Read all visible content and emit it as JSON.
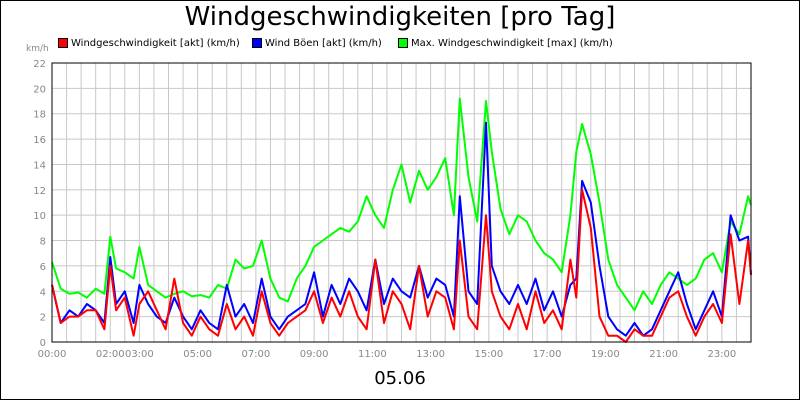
{
  "chart_data": {
    "type": "line",
    "title": "Windgeschwindigkeiten [pro Tag]",
    "ylabel": "km/h",
    "xlabel": "05.06",
    "ylim": [
      0,
      22
    ],
    "yticks": [
      0,
      2,
      4,
      6,
      8,
      10,
      12,
      14,
      16,
      18,
      20,
      22
    ],
    "xlim": [
      0,
      24
    ],
    "xtick_labels": [
      {
        "x": 0,
        "label": "00:00"
      },
      {
        "x": 2,
        "label": "02:00"
      },
      {
        "x": 3,
        "label": "03:00"
      },
      {
        "x": 5,
        "label": "05:00"
      },
      {
        "x": 7,
        "label": "07:00"
      },
      {
        "x": 9,
        "label": "09:00"
      },
      {
        "x": 11,
        "label": "11:00"
      },
      {
        "x": 13,
        "label": "13:00"
      },
      {
        "x": 15,
        "label": "15:00"
      },
      {
        "x": 17,
        "label": "17:00"
      },
      {
        "x": 19,
        "label": "19:00"
      },
      {
        "x": 21,
        "label": "21:00"
      },
      {
        "x": 23,
        "label": "23:00"
      }
    ],
    "grid": true,
    "legend_position": "top",
    "series": [
      {
        "name": "Max. Windgeschwindigkeit [max] (km/h)",
        "color": "#00ff00",
        "x": [
          0,
          0.3,
          0.6,
          0.9,
          1.2,
          1.5,
          1.8,
          2.0,
          2.2,
          2.5,
          2.8,
          3.0,
          3.3,
          3.6,
          3.9,
          4.2,
          4.5,
          4.8,
          5.1,
          5.4,
          5.7,
          6.0,
          6.3,
          6.6,
          6.9,
          7.2,
          7.5,
          7.8,
          8.1,
          8.4,
          8.7,
          9.0,
          9.3,
          9.6,
          9.9,
          10.2,
          10.5,
          10.8,
          11.1,
          11.4,
          11.7,
          12.0,
          12.3,
          12.6,
          12.9,
          13.2,
          13.5,
          13.8,
          14.0,
          14.3,
          14.6,
          14.9,
          15.1,
          15.4,
          15.7,
          16.0,
          16.3,
          16.6,
          16.9,
          17.2,
          17.5,
          17.8,
          18.0,
          18.2,
          18.5,
          18.8,
          19.1,
          19.4,
          19.7,
          20.0,
          20.3,
          20.6,
          20.9,
          21.2,
          21.5,
          21.8,
          22.1,
          22.4,
          22.7,
          23.0,
          23.3,
          23.6,
          23.9,
          24.0
        ],
        "values": [
          6.3,
          4.2,
          3.8,
          3.9,
          3.5,
          4.2,
          3.8,
          8.3,
          5.8,
          5.5,
          5.0,
          7.5,
          4.5,
          4.0,
          3.5,
          3.8,
          4.0,
          3.6,
          3.7,
          3.5,
          4.5,
          4.2,
          6.5,
          5.8,
          6.0,
          8.0,
          5.0,
          3.5,
          3.2,
          5.0,
          6.0,
          7.5,
          8.0,
          8.5,
          9.0,
          8.7,
          9.5,
          11.5,
          10.0,
          9.0,
          12.0,
          14.0,
          11.0,
          13.5,
          12.0,
          13.0,
          14.5,
          10.0,
          19.2,
          13.0,
          9.5,
          19.0,
          15.0,
          10.5,
          8.5,
          10.0,
          9.5,
          8.0,
          7.0,
          6.5,
          5.5,
          10.0,
          15.0,
          17.2,
          14.8,
          11.0,
          6.5,
          4.5,
          3.5,
          2.5,
          4.0,
          3.0,
          4.5,
          5.5,
          5.0,
          4.5,
          5.0,
          6.5,
          7.0,
          5.5,
          9.5,
          8.5,
          11.5,
          10.8
        ]
      },
      {
        "name": "Wind Böen [akt] (km/h)",
        "color": "#0000ff",
        "x": [
          0,
          0.3,
          0.6,
          0.9,
          1.2,
          1.5,
          1.8,
          2.0,
          2.2,
          2.5,
          2.8,
          3.0,
          3.3,
          3.6,
          3.9,
          4.2,
          4.5,
          4.8,
          5.1,
          5.4,
          5.7,
          6.0,
          6.3,
          6.6,
          6.9,
          7.2,
          7.5,
          7.8,
          8.1,
          8.4,
          8.7,
          9.0,
          9.3,
          9.6,
          9.9,
          10.2,
          10.5,
          10.8,
          11.1,
          11.4,
          11.7,
          12.0,
          12.3,
          12.6,
          12.9,
          13.2,
          13.5,
          13.8,
          14.0,
          14.3,
          14.6,
          14.9,
          15.1,
          15.4,
          15.7,
          16.0,
          16.3,
          16.6,
          16.9,
          17.2,
          17.5,
          17.8,
          18.0,
          18.2,
          18.5,
          18.8,
          19.1,
          19.4,
          19.7,
          20.0,
          20.3,
          20.6,
          20.9,
          21.2,
          21.5,
          21.8,
          22.1,
          22.4,
          22.7,
          23.0,
          23.3,
          23.6,
          23.9,
          24.0
        ],
        "values": [
          4.5,
          1.5,
          2.5,
          2.0,
          3.0,
          2.5,
          1.5,
          6.7,
          3.0,
          4.0,
          1.5,
          4.5,
          3.0,
          2.0,
          1.5,
          3.5,
          2.0,
          1.0,
          2.5,
          1.5,
          1.0,
          4.5,
          2.0,
          3.0,
          1.5,
          5.0,
          2.0,
          1.0,
          2.0,
          2.5,
          3.0,
          5.5,
          2.0,
          4.5,
          3.0,
          5.0,
          4.0,
          2.5,
          6.5,
          3.0,
          5.0,
          4.0,
          3.5,
          6.0,
          3.5,
          5.0,
          4.5,
          2.0,
          11.5,
          4.0,
          3.0,
          17.3,
          6.0,
          4.0,
          3.0,
          4.5,
          3.0,
          5.0,
          2.5,
          4.0,
          2.0,
          4.5,
          5.0,
          12.7,
          11.0,
          6.0,
          2.0,
          1.0,
          0.5,
          1.5,
          0.5,
          1.0,
          2.5,
          4.0,
          5.5,
          3.0,
          1.0,
          2.5,
          4.0,
          2.0,
          10.0,
          8.0,
          8.3,
          5.3
        ]
      },
      {
        "name": "Windgeschwindigkeit [akt] (km/h)",
        "color": "#ff0000",
        "x": [
          0,
          0.3,
          0.6,
          0.9,
          1.2,
          1.5,
          1.8,
          2.0,
          2.2,
          2.5,
          2.8,
          3.0,
          3.3,
          3.6,
          3.9,
          4.2,
          4.5,
          4.8,
          5.1,
          5.4,
          5.7,
          6.0,
          6.3,
          6.6,
          6.9,
          7.2,
          7.5,
          7.8,
          8.1,
          8.4,
          8.7,
          9.0,
          9.3,
          9.6,
          9.9,
          10.2,
          10.5,
          10.8,
          11.1,
          11.4,
          11.7,
          12.0,
          12.3,
          12.6,
          12.9,
          13.2,
          13.5,
          13.8,
          14.0,
          14.3,
          14.6,
          14.9,
          15.1,
          15.4,
          15.7,
          16.0,
          16.3,
          16.6,
          16.9,
          17.2,
          17.5,
          17.8,
          18.0,
          18.2,
          18.5,
          18.8,
          19.1,
          19.4,
          19.7,
          20.0,
          20.3,
          20.6,
          20.9,
          21.2,
          21.5,
          21.8,
          22.1,
          22.4,
          22.7,
          23.0,
          23.3,
          23.6,
          23.9,
          24.0
        ],
        "values": [
          4.5,
          1.5,
          2.0,
          2.0,
          2.5,
          2.5,
          1.0,
          6.0,
          2.5,
          3.5,
          0.5,
          3.0,
          4.0,
          2.5,
          1.0,
          5.0,
          1.5,
          0.5,
          2.0,
          1.0,
          0.5,
          3.0,
          1.0,
          2.0,
          0.5,
          4.0,
          1.5,
          0.5,
          1.5,
          2.0,
          2.5,
          4.0,
          1.5,
          3.5,
          2.0,
          4.0,
          2.0,
          1.0,
          6.5,
          1.5,
          4.0,
          3.0,
          1.0,
          6.0,
          2.0,
          4.0,
          3.5,
          1.0,
          8.0,
          2.0,
          1.0,
          10.0,
          4.0,
          2.0,
          1.0,
          3.0,
          1.0,
          4.0,
          1.5,
          2.5,
          1.0,
          6.5,
          3.5,
          12.0,
          9.0,
          2.0,
          0.5,
          0.5,
          0.0,
          1.0,
          0.5,
          0.5,
          2.0,
          3.5,
          4.0,
          2.0,
          0.5,
          2.0,
          3.0,
          1.5,
          8.5,
          3.0,
          8.0,
          5.3
        ]
      }
    ]
  }
}
